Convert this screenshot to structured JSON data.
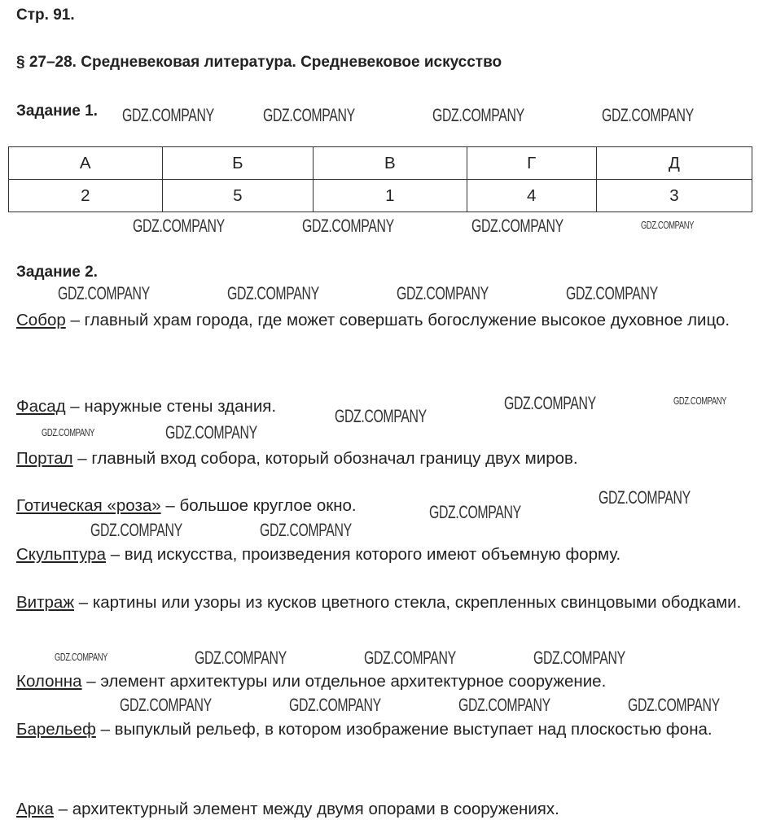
{
  "page_label": "Стр. 91.",
  "section_title": "§ 27–28. Средневековая литература. Средневековое искусство",
  "task1": {
    "title": "Задание 1.",
    "headers": [
      "А",
      "Б",
      "В",
      "Г",
      "Д"
    ],
    "values": [
      "2",
      "5",
      "1",
      "4",
      "3"
    ]
  },
  "task2": {
    "title": "Задание 2.",
    "definitions": [
      {
        "term": "Собор",
        "text": " – главный храм города, где может совершать богослужение высокое духовное лицо."
      },
      {
        "term": "Фасад",
        "text": " – наружные стены здания."
      },
      {
        "term": "Портал",
        "text": " – главный вход собора, который обозначал границу двух миров."
      },
      {
        "term": "Готическая «роза»",
        "text": " – большое круглое окно."
      },
      {
        "term": "Скульптура",
        "text": " – вид искусства, произведения которого имеют объемную форму."
      },
      {
        "term": "Витраж",
        "text": " – картины или узоры из кусков цветного стекла, скрепленных свинцовыми ободками."
      },
      {
        "term": "Колонна",
        "text": " – элемент архитектуры или отдельное архитектурное сооружение."
      },
      {
        "term": "Барельеф",
        "text": " – выпуклый рельеф, в котором изображение выступает над плоскостью фона."
      },
      {
        "term": "Арка",
        "text": " – архитектурный элемент между двумя опорами в сооружениях."
      }
    ]
  },
  "watermark": "GDZ.COMPANY"
}
